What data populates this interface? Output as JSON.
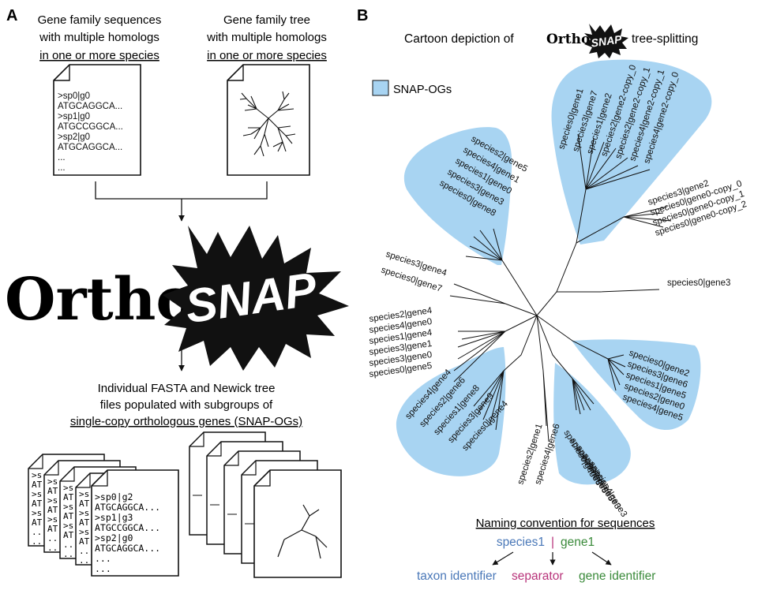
{
  "panel_a": {
    "letter": "A",
    "input_left": {
      "line1": "Gene family sequences",
      "line2": "with multiple homologs",
      "line3": "in one or more species"
    },
    "input_right": {
      "line1": "Gene family tree",
      "line2": "with multiple homologs",
      "line3": "in one or more species"
    },
    "fasta_input_lines": [
      ">sp0|g0",
      "ATGCAGGCA...",
      ">sp1|g0",
      "ATGCCGGCA...",
      ">sp2|g0",
      "ATGCAGGCA...",
      "...",
      "..."
    ],
    "logo": {
      "ortho": "Ortho",
      "snap": "SNAP"
    },
    "output_caption": {
      "line1": "Individual FASTA and Newick tree",
      "line2": "files populated with subgroups of",
      "line3": "single-copy orthologous genes (SNAP-OGs)"
    },
    "stack_stub_lines": [
      ">s",
      "AT",
      ">s",
      "AT",
      ">s",
      "AT",
      "..",
      ".."
    ],
    "fasta_output_lines": [
      ">sp0|g2",
      "ATGCAGGCA...",
      ">sp1|g3",
      "ATGCCGGCA...",
      ">sp2|g0",
      "ATGCAGGCA...",
      "...",
      "..."
    ]
  },
  "panel_b": {
    "letter": "B",
    "title_prefix": "Cartoon depiction of",
    "title_ortho": "Ortho",
    "title_snap": "SNAP",
    "title_suffix": "tree-splitting",
    "legend_label": "SNAP-OGs",
    "highlight_color": "#a8d4f2",
    "groups": {
      "top": [
        "species0|gene1",
        "species3|gene7",
        "species1|gene2",
        "species2|gene2-copy_0",
        "species2|gene2-copy_1",
        "species4|gene2-copy_1",
        "species4|gene2-copy_0"
      ],
      "right_upper": [
        "species3|gene2",
        "species0|gene0-copy_0",
        "species0|gene0-copy_1",
        "species0|gene0-copy_2"
      ],
      "left_upper": [
        "species2|gene5",
        "species4|gene1",
        "species1|gene0",
        "species3|gene3",
        "species0|gene8"
      ],
      "middle_left": [
        "species3|gene4",
        "species0|gene7"
      ],
      "right_single": [
        "species0|gene3"
      ],
      "left_lower": [
        "species2|gene4",
        "species4|gene0",
        "species1|gene4",
        "species3|gene1",
        "species3|gene0",
        "species0|gene5"
      ],
      "bottom_left": [
        "species4|gene4",
        "species2|gene6",
        "species1|gene8",
        "species3|gene9",
        "species0|gene4"
      ],
      "bottom_mid": [
        "species2|gene1",
        "species4|gene6"
      ],
      "bottom_right": [
        "species0|gene6",
        "species3|gene5",
        "species2|gene3",
        "species1|gene3",
        "species4|gene3"
      ],
      "right_lower": [
        "species0|gene2",
        "species3|gene6",
        "species1|gene5",
        "species2|gene0",
        "species4|gene5"
      ]
    },
    "naming": {
      "heading": "Naming convention for sequences",
      "taxon_part": "species1",
      "separator_part": "|",
      "gene_part": "gene1",
      "taxon_label": "taxon identifier",
      "separator_label": "separator",
      "gene_label": "gene identifier",
      "taxon_color": "#4a78b8",
      "separator_color": "#b8337a",
      "gene_color": "#3a8a3a"
    }
  }
}
